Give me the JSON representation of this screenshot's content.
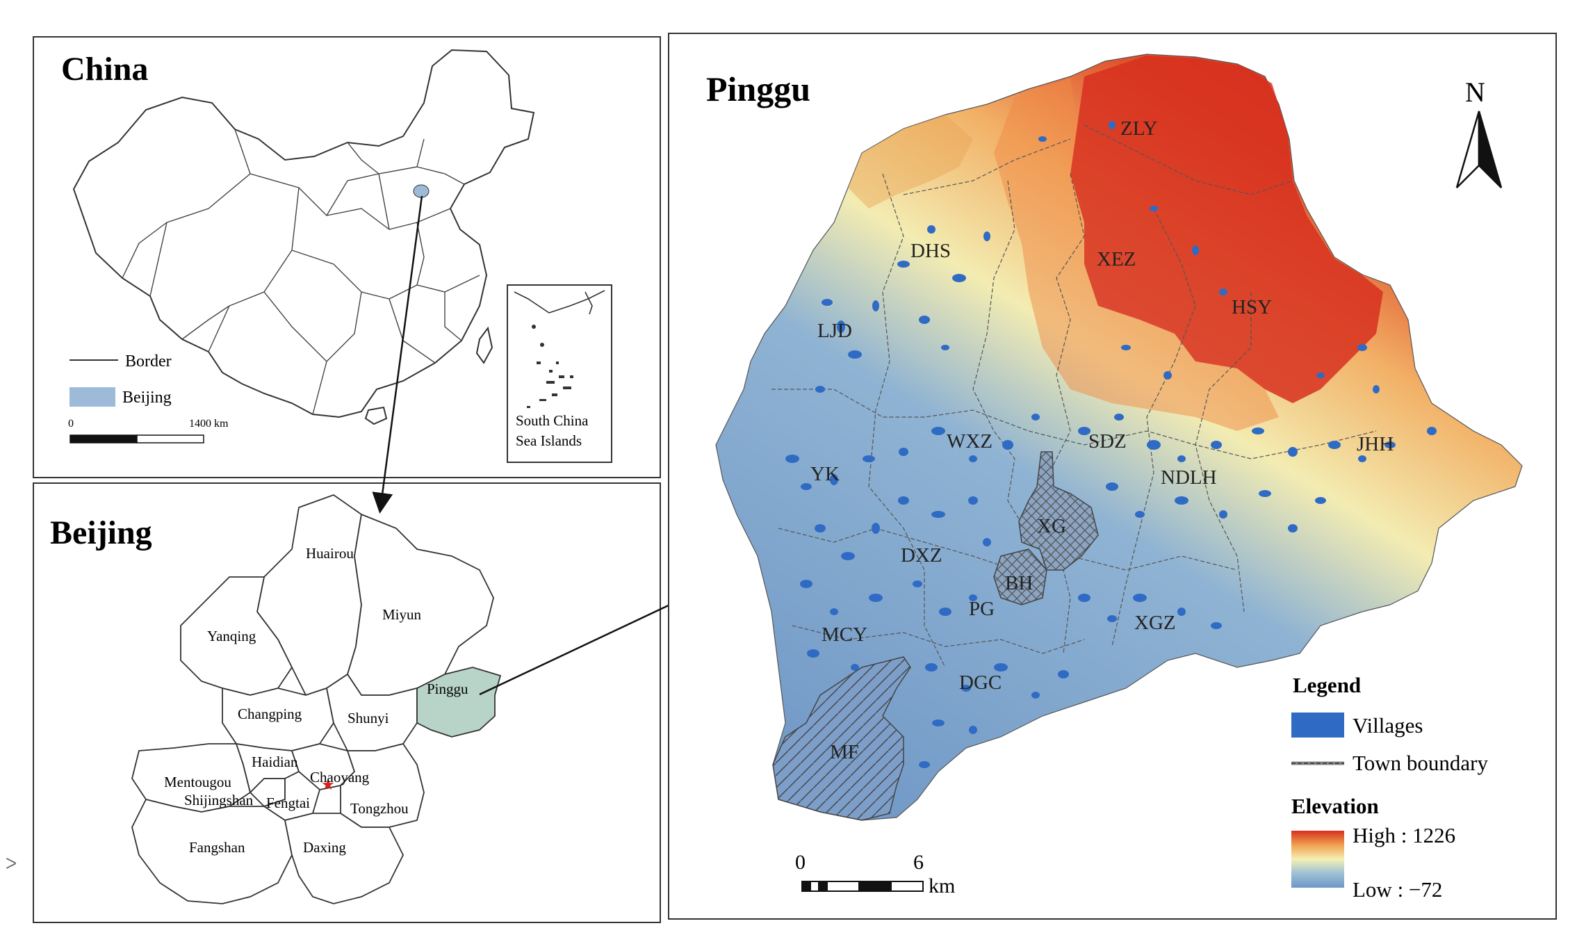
{
  "china": {
    "title": "China",
    "legend_border": "Border",
    "legend_beijing": "Beijing",
    "scale_start": "0",
    "scale_end": "1400 km",
    "inset_label_1": "South China",
    "inset_label_2": "Sea Islands"
  },
  "beijing": {
    "title": "Beijing",
    "districts": [
      "Huairou",
      "Miyun",
      "Yanqing",
      "Pinggu",
      "Changping",
      "Shunyi",
      "Haidian",
      "Chaoyang",
      "Mentougou",
      "Shijingshan",
      "Fengtai",
      "Tongzhou",
      "Fangshan",
      "Daxing"
    ]
  },
  "pinggu": {
    "title": "Pinggu",
    "north": "N",
    "towns": [
      "ZLY",
      "DHS",
      "XEZ",
      "HSY",
      "LJD",
      "WXZ",
      "SDZ",
      "JHH",
      "YK",
      "NDLH",
      "XG",
      "DXZ",
      "BH",
      "PG",
      "MCY",
      "XGZ",
      "DGC",
      "MF"
    ],
    "scale_start": "0",
    "scale_end": "6",
    "scale_unit": "km"
  },
  "legend": {
    "title": "Legend",
    "villages": "Villages",
    "town_boundary": "Town boundary",
    "elevation_title": "Elevation",
    "high": "High : 1226",
    "low": "Low : −72"
  },
  "colors": {
    "beijing_highlight": "#9dbbd9",
    "pinggu_highlight": "#b8d4c8",
    "village": "#2f6bc4",
    "elev_high": "#d7301f",
    "elev_mid": "#f5f0b4",
    "elev_low": "#6f97c6"
  },
  "side_mark": "ᐳ"
}
